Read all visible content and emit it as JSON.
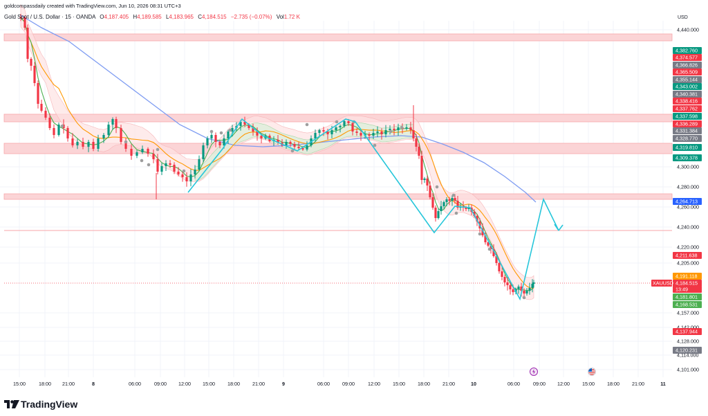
{
  "header": {
    "attribution": "goldcompassdaily created with TradingView.com, Jun 10, 2026 08:31 UTC+3"
  },
  "legend": {
    "symbol": "Gold Spot / U.S. Dollar · 15 · OANDA",
    "o_label": "O",
    "o_value": "4,187.405",
    "h_label": "H",
    "h_value": "4,189.585",
    "l_label": "L",
    "l_value": "4,183.965",
    "c_label": "C",
    "c_value": "4,184.515",
    "change": "−2.735 (−0.07%)",
    "vol_label": "Vol",
    "vol_value": "1.72 K"
  },
  "currency": "USD",
  "colors": {
    "up": "#089981",
    "down": "#f23645",
    "zone": "#f7a6aa",
    "zone_fill": "#fbd0d2",
    "ma_green": "#4caf50",
    "ma_orange": "#ff9800",
    "ma_blue": "#7e9cf2",
    "zigzag": "#26c6da",
    "band_up": "#c8e6c9",
    "band_down": "#fde0e0"
  },
  "y_axis": {
    "labels": [
      "4,440.000",
      "4,300.000",
      "4,280.000",
      "4,260.000",
      "4,240.000",
      "4,220.000",
      "4,205.000",
      "4,157.000",
      "4,142.000",
      "4,128.000",
      "4,114.000",
      "4,101.000"
    ]
  },
  "price_boxes": [
    {
      "price": "4,382.760",
      "color": "#089981"
    },
    {
      "price": "4,374.577",
      "color": "#f23645"
    },
    {
      "price": "4,366.826",
      "color": "#787b86"
    },
    {
      "price": "4,365.509",
      "color": "#f23645"
    },
    {
      "price": "4,355.144",
      "color": "#787b86"
    },
    {
      "price": "4,343.002",
      "color": "#089981"
    },
    {
      "price": "4,340.381",
      "color": "#787b86"
    },
    {
      "price": "4,338.416",
      "color": "#f23645"
    },
    {
      "price": "4,337.762",
      "color": "#f23645"
    },
    {
      "price": "4,337.598",
      "color": "#089981"
    },
    {
      "price": "4,336.289",
      "color": "#f23645"
    },
    {
      "price": "4,331.384",
      "color": "#787b86"
    },
    {
      "price": "4,328.770",
      "color": "#787b86"
    },
    {
      "price": "4,319.810",
      "color": "#089981"
    },
    {
      "price": "4,309.378",
      "color": "#089981"
    },
    {
      "price": "4,264.713",
      "color": "#2962ff"
    },
    {
      "price": "4,211.638",
      "color": "#f23645"
    },
    {
      "price": "4,191.118",
      "color": "#ff9800"
    },
    {
      "price": "4,184.515",
      "color": "#f23645"
    },
    {
      "price": "13:49",
      "color": "#f23645"
    },
    {
      "price": "4,181.801",
      "color": "#4caf50"
    },
    {
      "price": "4,168.531",
      "color": "#4caf50"
    },
    {
      "price": "4,137.944",
      "color": "#f23645"
    },
    {
      "price": "4,120.231",
      "color": "#787b86"
    }
  ],
  "symbol_tag": "XAUUSD",
  "x_axis": {
    "labels": [
      "15:00",
      "18:00",
      "21:00",
      "8",
      "06:00",
      "09:00",
      "12:00",
      "15:00",
      "18:00",
      "21:00",
      "9",
      "06:00",
      "09:00",
      "12:00",
      "15:00",
      "18:00",
      "21:00",
      "10",
      "06:00",
      "09:00",
      "12:00",
      "15:00",
      "18:00",
      "21:00",
      "11"
    ]
  },
  "footer": {
    "brand": "TradingView"
  }
}
